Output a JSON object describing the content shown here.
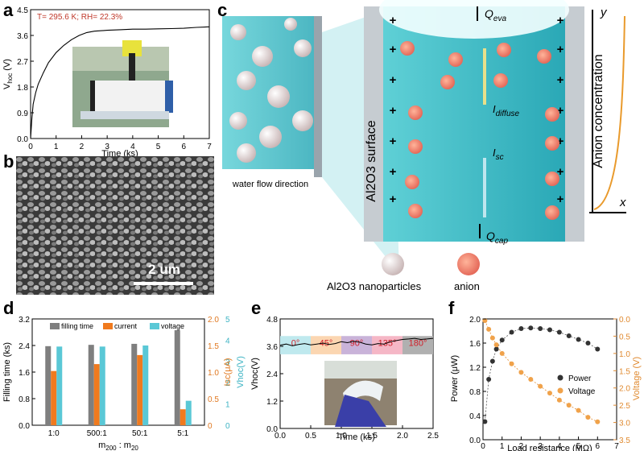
{
  "panel_labels": {
    "a": "a",
    "b": "b",
    "c": "c",
    "d": "d",
    "e": "e",
    "f": "f"
  },
  "panel_a": {
    "annotation": "T= 295.6 K; RH= 22.3%",
    "xlabel": "Time (ks)",
    "ylabel": "V",
    "ylabel_sub": "hoc",
    "ylabel_unit": " (V)",
    "x_ticks": [
      "0",
      "1",
      "2",
      "3",
      "4",
      "5",
      "6",
      "7"
    ],
    "y_ticks": [
      "0.0",
      "0.9",
      "1.8",
      "2.7",
      "3.6",
      "4.5"
    ]
  },
  "panel_b": {
    "scale_bar": "2 um"
  },
  "panel_c": {
    "water_flow": "water flow direction",
    "surface_label": "Al2O3 surface",
    "q_eva": "Q",
    "q_eva_sub": "eva",
    "q_cap": "Q",
    "q_cap_sub": "cap",
    "i_diffuse": "I",
    "i_diffuse_sub": "diffuse",
    "i_sc": "I",
    "i_sc_sub": "sc",
    "anion_axis": "Anion concentration",
    "axis_y": "y",
    "axis_x": "x",
    "legend_np": "Al2O3 nanoparticles",
    "legend_anion": "anion",
    "plus": "+"
  },
  "chart_data": [
    {
      "id": "a",
      "type": "line",
      "title": "",
      "xlabel": "Time (ks)",
      "ylabel": "Vhoc (V)",
      "xlim": [
        0,
        7
      ],
      "ylim": [
        0,
        4.5
      ],
      "series": [
        {
          "name": "Vhoc",
          "x": [
            0,
            0.05,
            0.1,
            0.2,
            0.3,
            0.5,
            0.7,
            1.0,
            1.3,
            1.6,
            1.9,
            2.2,
            2.5,
            3.0,
            3.5,
            4.0,
            4.5,
            5.0,
            5.5,
            6.0,
            6.5,
            7.0
          ],
          "y": [
            0,
            0.7,
            1.2,
            1.6,
            1.9,
            2.3,
            2.65,
            3.0,
            3.25,
            3.45,
            3.6,
            3.7,
            3.75,
            3.78,
            3.8,
            3.82,
            3.82,
            3.83,
            3.84,
            3.85,
            3.88,
            3.9
          ]
        }
      ]
    },
    {
      "id": "d",
      "type": "bar",
      "categories": [
        "1:0",
        "500:1",
        "50:1",
        "5:1"
      ],
      "xlabel": "m200 : m20",
      "ylabel": "Filling time (ks)",
      "ylim": [
        0,
        3.2
      ],
      "y_ticks": [
        "0.0",
        "0.8",
        "1.6",
        "2.4",
        "3.2"
      ],
      "y2_ticks": [
        "0",
        "0.5",
        "1.0",
        "1.5",
        "2.0"
      ],
      "y2_label": "Isc(μA)",
      "y3_ticks": [
        "0",
        "1",
        "2",
        "3",
        "4",
        "5"
      ],
      "y3_label": "Vhoc(V)",
      "series": [
        {
          "name": "filling time",
          "values": [
            2.38,
            2.42,
            2.45,
            2.86
          ],
          "axis": "ks",
          "color": "#7f7f7f"
        },
        {
          "name": "current",
          "values": [
            1.02,
            1.15,
            1.32,
            0.3
          ],
          "axis": "uA",
          "color": "#f07a1e"
        },
        {
          "name": "voltage",
          "values": [
            3.7,
            3.7,
            3.75,
            1.15
          ],
          "axis": "V",
          "color": "#5ac8d6"
        }
      ]
    },
    {
      "id": "e",
      "type": "line",
      "xlabel": "Time (ks)",
      "ylabel": "Vhoc(V)",
      "xlim": [
        0,
        2.5
      ],
      "ylim": [
        0,
        4.8
      ],
      "x_ticks": [
        "0.0",
        "0.5",
        "1.0",
        "1.5",
        "2.0",
        "2.5"
      ],
      "y_ticks": [
        "0.0",
        "1.2",
        "2.4",
        "3.6",
        "4.8"
      ],
      "bands": [
        "0°",
        "45°",
        "90°",
        "135°",
        "180°"
      ],
      "band_colors": [
        "#bfe9ee",
        "#fbd6b1",
        "#c9b3d9",
        "#f5b7c6",
        "#b0b0b0"
      ],
      "series": [
        {
          "name": "Vhoc",
          "x": [
            0,
            0.1,
            0.2,
            0.3,
            0.4,
            0.5,
            0.6,
            0.7,
            0.8,
            0.9,
            1.0,
            1.1,
            1.2,
            1.3,
            1.4,
            1.5,
            1.6,
            1.7,
            1.8,
            1.9,
            2.0,
            2.1,
            2.2,
            2.3,
            2.4,
            2.5
          ],
          "y": [
            3.65,
            3.7,
            3.62,
            3.68,
            3.72,
            3.66,
            3.7,
            3.74,
            3.68,
            3.72,
            3.8,
            3.76,
            3.82,
            3.78,
            3.7,
            3.66,
            3.72,
            3.7,
            3.8,
            3.85,
            3.9,
            3.92,
            3.95,
            3.9,
            3.92,
            3.95
          ]
        }
      ]
    },
    {
      "id": "f",
      "type": "scatter",
      "xlabel": "Load resistance (MΩ)",
      "ylabel": "Power (μW)",
      "y2label": "Voltage (V)",
      "xlim": [
        0,
        7
      ],
      "ylim": [
        0,
        2.0
      ],
      "y2lim": [
        3.5,
        0.0
      ],
      "x_ticks": [
        "0",
        "1",
        "2",
        "3",
        "4",
        "5",
        "6",
        "7"
      ],
      "y_ticks": [
        "0.0",
        "0.4",
        "0.8",
        "1.2",
        "1.6",
        "2.0"
      ],
      "y2_ticks": [
        "0.0",
        "0.5",
        "1.0",
        "1.5",
        "2.0",
        "2.5",
        "3.0",
        "3.5"
      ],
      "legend": [
        "Power",
        "Voltage"
      ],
      "series": [
        {
          "name": "Power",
          "x": [
            0.1,
            0.3,
            0.5,
            0.7,
            1.0,
            1.5,
            2.0,
            2.5,
            3.0,
            3.5,
            4.0,
            4.5,
            5.0,
            5.5,
            6.0
          ],
          "y": [
            0.3,
            1.0,
            1.3,
            1.5,
            1.65,
            1.78,
            1.84,
            1.85,
            1.84,
            1.82,
            1.78,
            1.72,
            1.66,
            1.6,
            1.5
          ],
          "axis": "left",
          "color": "#333333"
        },
        {
          "name": "Voltage",
          "x": [
            0.1,
            0.3,
            0.5,
            0.7,
            1.0,
            1.5,
            2.0,
            2.5,
            3.0,
            3.5,
            4.0,
            4.5,
            5.0,
            5.5,
            6.0
          ],
          "y": [
            0.05,
            0.3,
            0.55,
            0.75,
            1.0,
            1.3,
            1.55,
            1.75,
            1.95,
            2.15,
            2.35,
            2.5,
            2.65,
            2.85,
            2.98
          ],
          "axis": "right",
          "color": "#f0a24a"
        }
      ]
    }
  ]
}
